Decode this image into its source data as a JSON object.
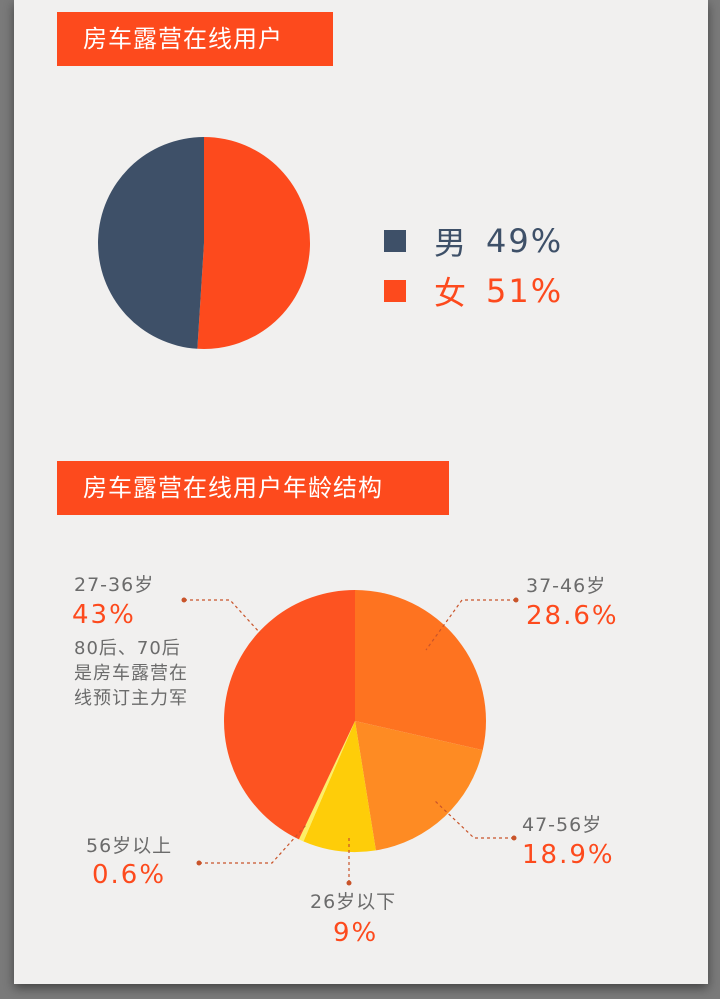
{
  "colors": {
    "accent": "#fd4a1d",
    "male": "#3e5068",
    "female": "#fd4a1d",
    "age_27_36": "#fd5321",
    "age_37_46": "#fe7320",
    "age_47_56": "#fe8b23",
    "age_26_below": "#fecd09",
    "age_56_above": "#fdef66"
  },
  "section1": {
    "title": "房车露营在线用户"
  },
  "section2": {
    "title": "房车露营在线用户年龄结构",
    "note": [
      "80后、70后",
      "是房车露营在",
      "线预订主力军"
    ]
  },
  "chart_data": [
    {
      "type": "pie",
      "title": "房车露营在线用户",
      "labels": [
        "男",
        "女"
      ],
      "values": [
        49,
        51
      ],
      "value_labels": [
        "49%",
        "51%"
      ],
      "colors": [
        "#3e5068",
        "#fd4a1d"
      ],
      "legend": "right"
    },
    {
      "type": "pie",
      "title": "房车露营在线用户年龄结构",
      "labels": [
        "37-46岁",
        "47-56岁",
        "26岁以下",
        "56岁以上",
        "27-36岁"
      ],
      "values": [
        28.6,
        18.9,
        9,
        0.6,
        43
      ],
      "value_labels": [
        "28.6%",
        "18.9%",
        "9%",
        "0.6%",
        "43%"
      ],
      "colors": [
        "#fe7320",
        "#fe8b23",
        "#fecd09",
        "#fdef66",
        "#fd5321"
      ],
      "annotation": "80后、70后是房车露营在线预订主力军"
    }
  ]
}
